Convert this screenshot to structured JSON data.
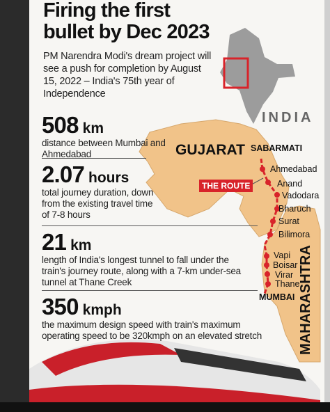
{
  "header": {
    "title": [
      "Firing the first",
      "bullet by Dec 2023"
    ],
    "intro": "PM Narendra Modi's dream project will see a push for completion by August 15, 2022 – India's 75th year of Independence"
  },
  "stats": [
    {
      "value": "508",
      "unit": "km",
      "description": "distance between Mumbai and Ahmedabad"
    },
    {
      "value": "2.07",
      "unit": "hours",
      "description": "total journey duration, down from the existing travel time of 7-8 hours"
    },
    {
      "value": "21",
      "unit": "km",
      "description": "length of India's longest tunnel to fall under the train's journey route, along with a 7-km under-sea tunnel at Thane Creek"
    },
    {
      "value": "350",
      "unit": "kmph",
      "description": "the maximum design speed with train's maximum operating speed to be 320kmph on an elevated stretch"
    }
  ],
  "map": {
    "country": "INDIA",
    "states": [
      "GUJARAT",
      "MAHARASHTRA"
    ],
    "route_label": "THE ROUTE",
    "stations": [
      "SABARMATI",
      "Ahmedabad",
      "Anand",
      "Vadodara",
      "Bharuch",
      "Surat",
      "Bilimora",
      "Vapi",
      "Boisar",
      "Virar",
      "Thane",
      "MUMBAI"
    ]
  }
}
